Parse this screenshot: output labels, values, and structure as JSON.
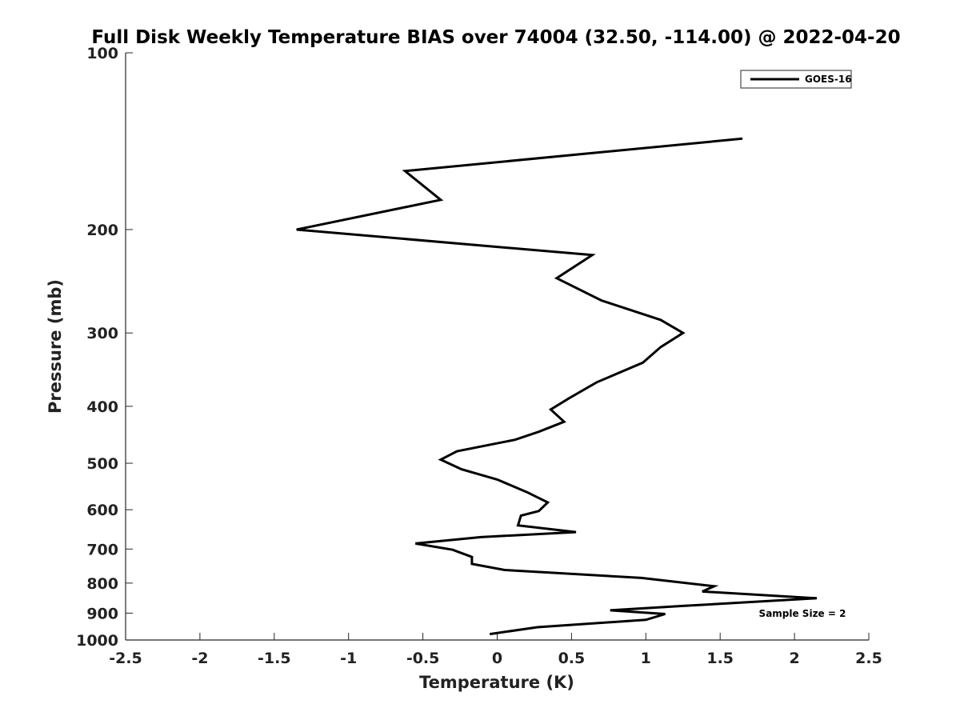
{
  "chart_data": {
    "type": "line",
    "title": "Full Disk Weekly Temperature BIAS over 74004 (32.50, -114.00) @ 2022-04-20",
    "xlabel": "Temperature (K)",
    "ylabel": "Pressure (mb)",
    "xlim": [
      -2.5,
      2.5
    ],
    "ylim": [
      1000,
      100
    ],
    "yscale": "log",
    "x_ticks": [
      "-2.5",
      "-2",
      "-1.5",
      "-1",
      "-0.5",
      "0",
      "0.5",
      "1",
      "1.5",
      "2",
      "2.5"
    ],
    "x_tick_values": [
      -2.5,
      -2,
      -1.5,
      -1,
      -0.5,
      0,
      0.5,
      1,
      1.5,
      2,
      2.5
    ],
    "y_ticks": [
      "100",
      "200",
      "300",
      "400",
      "500",
      "600",
      "700",
      "800",
      "900",
      "1000"
    ],
    "y_tick_values": [
      100,
      200,
      300,
      400,
      500,
      600,
      700,
      800,
      900,
      1000
    ],
    "grid": false,
    "legend_position": "top-right",
    "annotation": "Sample Size = 2",
    "series": [
      {
        "name": "GOES-16",
        "color": "#000000",
        "points": [
          {
            "t": 1.65,
            "p": 140
          },
          {
            "t": -0.62,
            "p": 159
          },
          {
            "t": -0.38,
            "p": 178
          },
          {
            "t": -1.35,
            "p": 200
          },
          {
            "t": 0.64,
            "p": 221
          },
          {
            "t": 0.4,
            "p": 242
          },
          {
            "t": 0.7,
            "p": 264
          },
          {
            "t": 1.1,
            "p": 285
          },
          {
            "t": 1.25,
            "p": 300
          },
          {
            "t": 1.1,
            "p": 317
          },
          {
            "t": 0.98,
            "p": 337
          },
          {
            "t": 0.67,
            "p": 364
          },
          {
            "t": 0.48,
            "p": 388
          },
          {
            "t": 0.36,
            "p": 405
          },
          {
            "t": 0.45,
            "p": 425
          },
          {
            "t": 0.28,
            "p": 442
          },
          {
            "t": 0.12,
            "p": 456
          },
          {
            "t": -0.27,
            "p": 477
          },
          {
            "t": -0.38,
            "p": 493
          },
          {
            "t": -0.24,
            "p": 512
          },
          {
            "t": 0.0,
            "p": 533
          },
          {
            "t": 0.2,
            "p": 560
          },
          {
            "t": 0.34,
            "p": 583
          },
          {
            "t": 0.28,
            "p": 603
          },
          {
            "t": 0.16,
            "p": 614
          },
          {
            "t": 0.14,
            "p": 638
          },
          {
            "t": 0.53,
            "p": 655
          },
          {
            "t": -0.11,
            "p": 668
          },
          {
            "t": -0.55,
            "p": 685
          },
          {
            "t": -0.3,
            "p": 702
          },
          {
            "t": -0.17,
            "p": 722
          },
          {
            "t": -0.17,
            "p": 742
          },
          {
            "t": 0.05,
            "p": 760
          },
          {
            "t": 0.97,
            "p": 784
          },
          {
            "t": 1.46,
            "p": 810
          },
          {
            "t": 1.38,
            "p": 827
          },
          {
            "t": 2.15,
            "p": 849
          },
          {
            "t": 1.25,
            "p": 875
          },
          {
            "t": 0.76,
            "p": 890
          },
          {
            "t": 1.13,
            "p": 903
          },
          {
            "t": 1.0,
            "p": 924
          },
          {
            "t": 0.27,
            "p": 951
          },
          {
            "t": -0.05,
            "p": 977
          }
        ]
      }
    ]
  }
}
